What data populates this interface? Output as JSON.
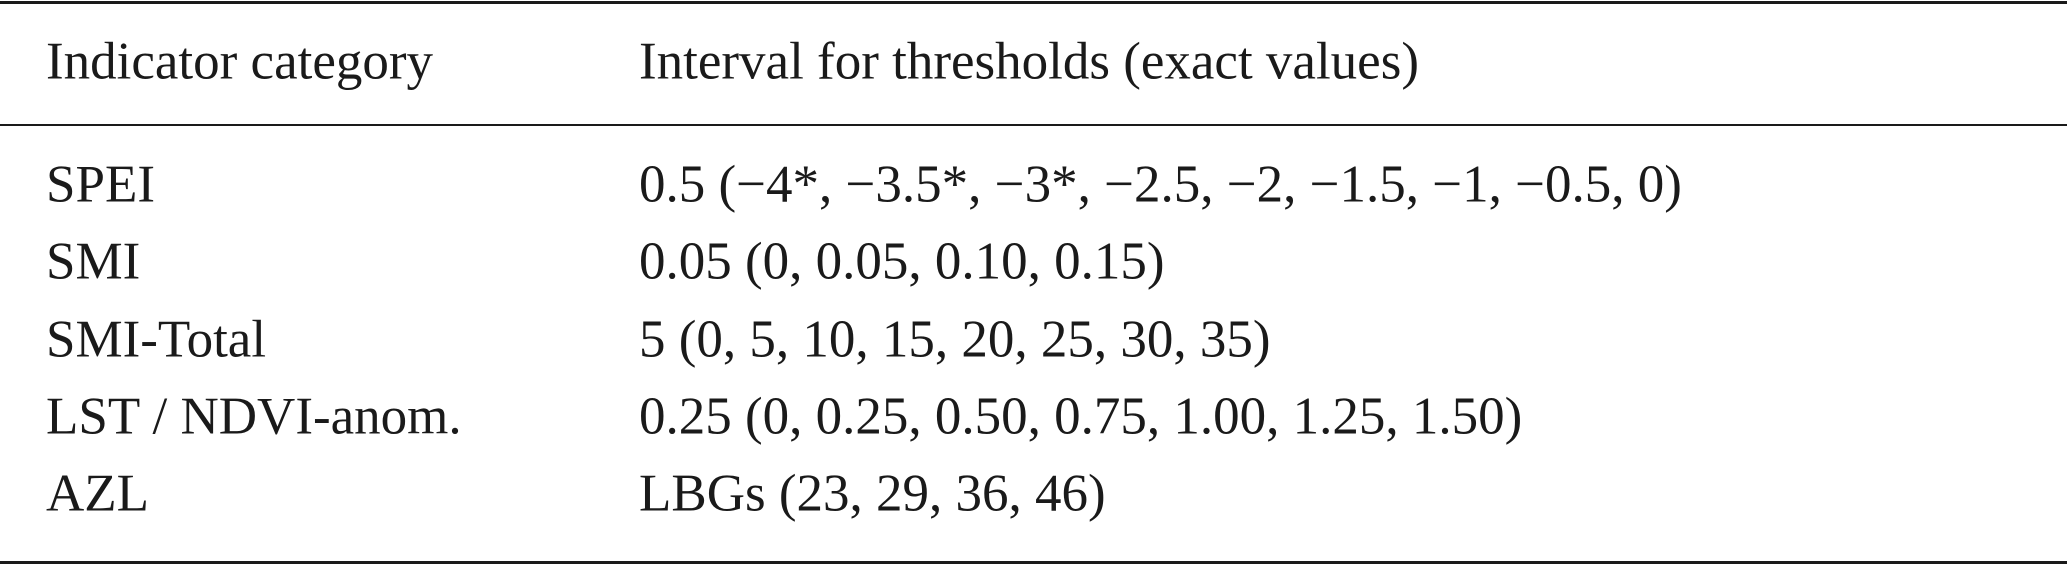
{
  "table": {
    "header": [
      "Indicator category",
      "Interval for thresholds (exact values)"
    ],
    "rows": [
      [
        "SPEI",
        "0.5 (−4*, −3.5*, −3*, −2.5, −2, −1.5, −1, −0.5, 0)"
      ],
      [
        "SMI",
        "0.05 (0, 0.05, 0.10, 0.15)"
      ],
      [
        "SMI-Total",
        "5 (0, 5, 10, 15, 20, 25, 30, 35)"
      ],
      [
        "LST / NDVI-anom.",
        "0.25 (0, 0.25, 0.50, 0.75, 1.00, 1.25, 1.50)"
      ],
      [
        "AZL",
        "LBGs (23, 29, 36, 46)"
      ]
    ]
  }
}
